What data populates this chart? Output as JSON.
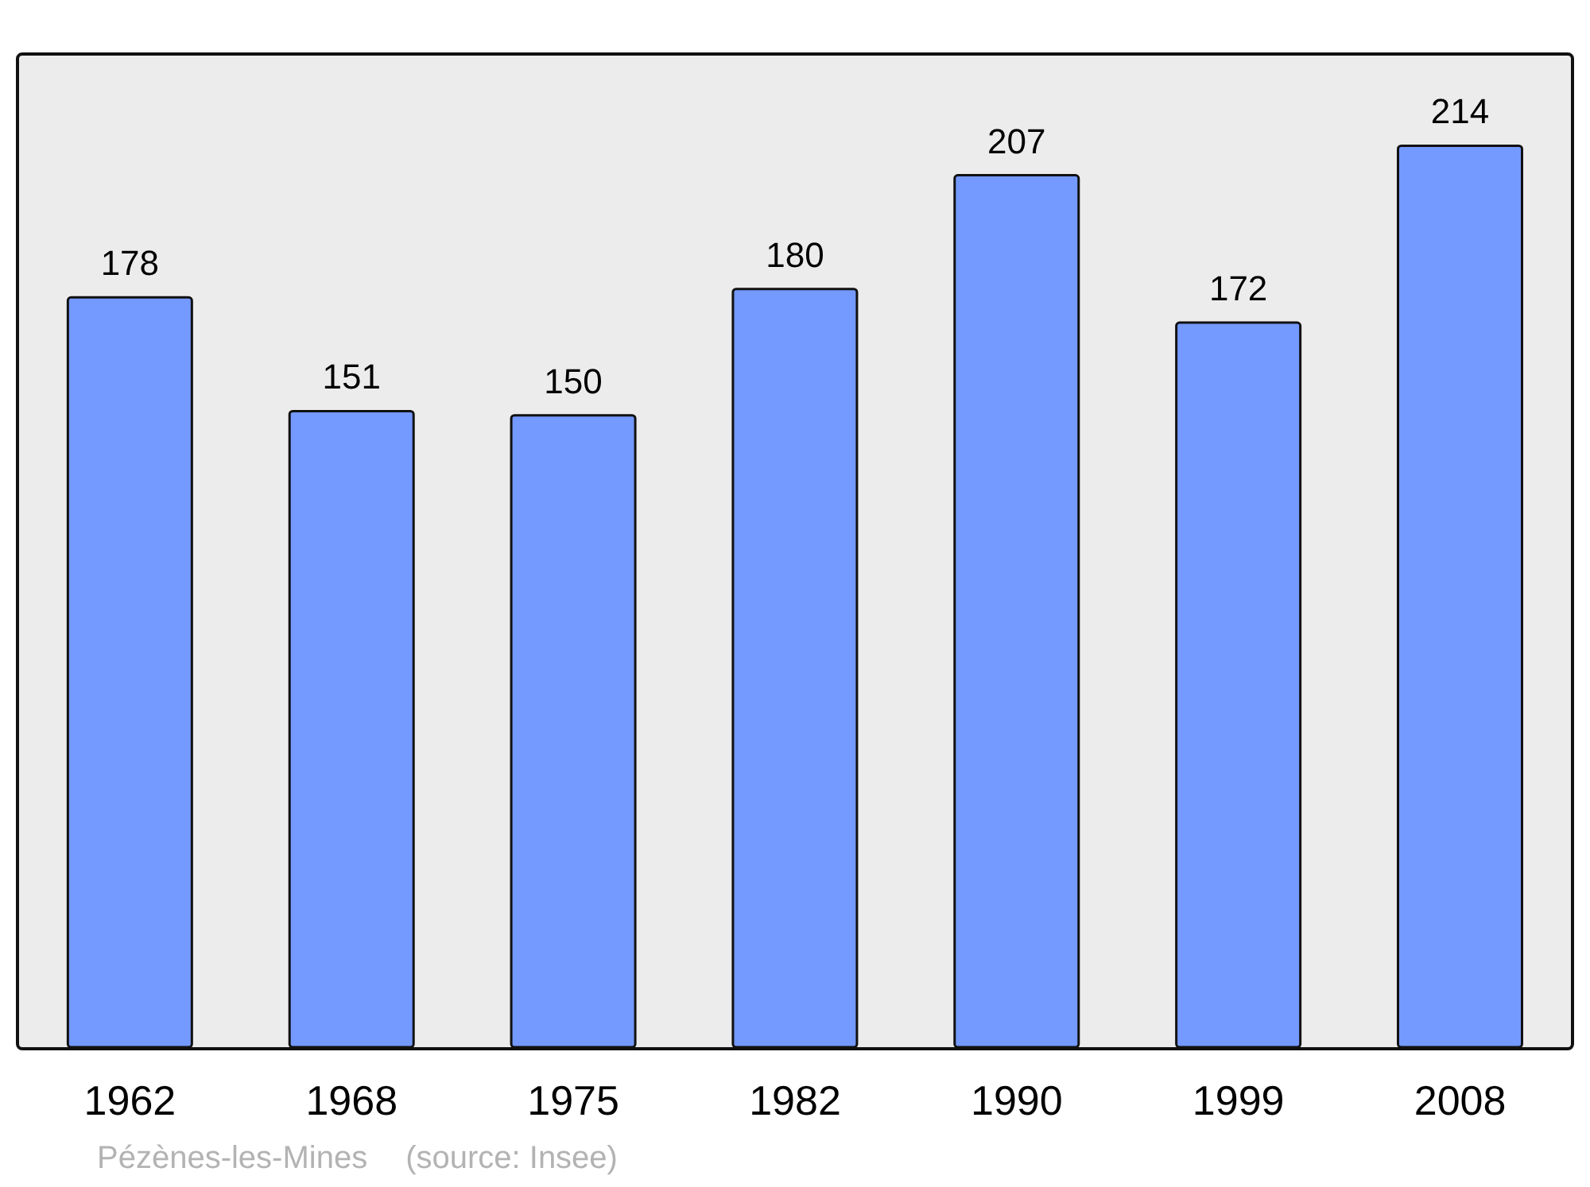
{
  "chart_data": {
    "type": "bar",
    "categories": [
      "1962",
      "1968",
      "1975",
      "1982",
      "1990",
      "1999",
      "2008"
    ],
    "values": [
      178,
      151,
      150,
      180,
      207,
      172,
      214
    ],
    "color": "#7499ff",
    "data_labels": true,
    "annotations": [
      "Pézènes-les-Mines",
      "(source: Insee)"
    ]
  }
}
